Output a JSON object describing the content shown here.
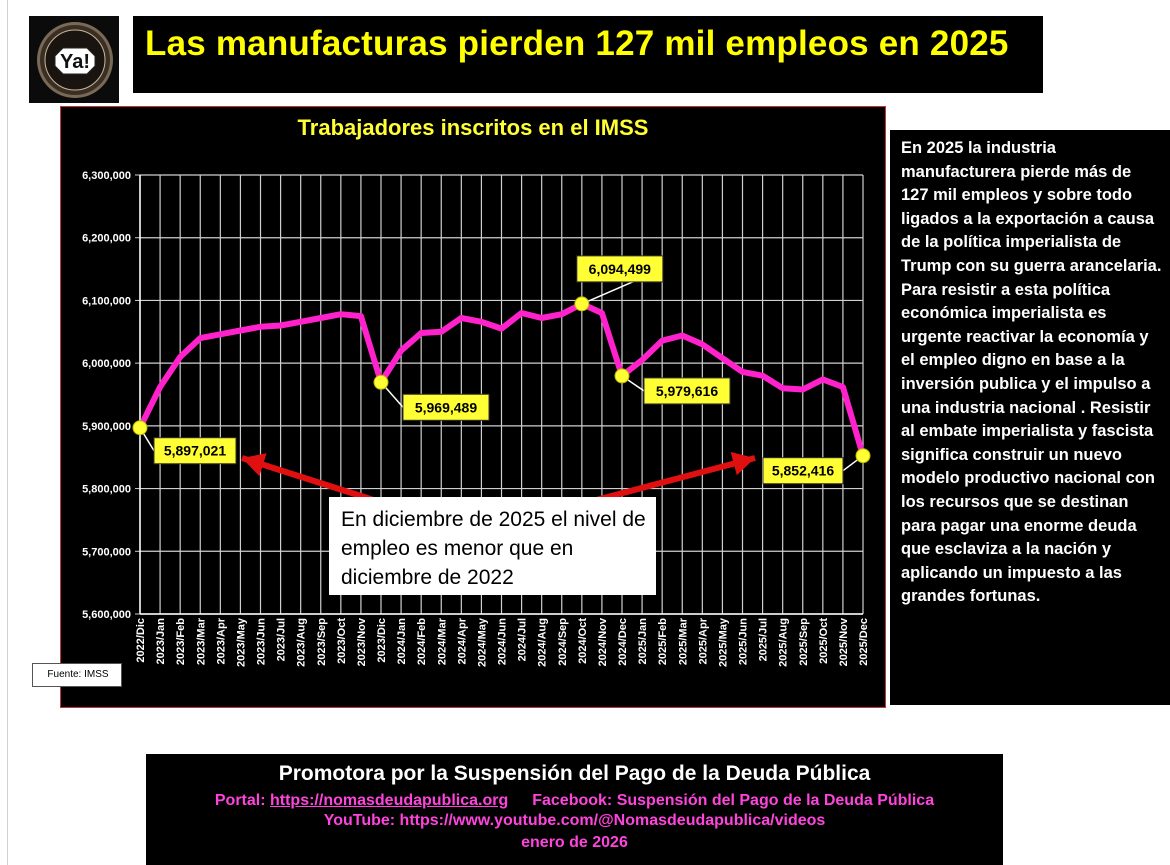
{
  "header": {
    "title": "Las manufacturas pierden 127 mil empleos en 2025",
    "logo_text": "Ya!"
  },
  "chart_data": {
    "type": "line",
    "title": "Trabajadores inscritos en el IMSS",
    "ylim": [
      5600000,
      6300000
    ],
    "ytick_labels": [
      "5,600,000",
      "5,700,000",
      "5,800,000",
      "5,900,000",
      "6,000,000",
      "6,100,000",
      "6,200,000",
      "6,300,000"
    ],
    "grid": true,
    "line_color": "#ff22cc",
    "marker_color": "#ffff33",
    "x": [
      "2022/Dic",
      "2023/Jan",
      "2023/Feb",
      "2023/Mar",
      "2023/Apr",
      "2023/May",
      "2023/Jun",
      "2023/Jul",
      "2023/Aug",
      "2023/Sep",
      "2023/Oct",
      "2023/Nov",
      "2023/Dic",
      "2024/Jan",
      "2024/Feb",
      "2024/Mar",
      "2024/Apr",
      "2024/May",
      "2024/Jun",
      "2024/Jul",
      "2024/Aug",
      "2024/Sep",
      "2024/Oct",
      "2024/Nov",
      "2024/Dec",
      "2025/Jan",
      "2025/Feb",
      "2025/Mar",
      "2025/Apr",
      "2025/May",
      "2025/Jun",
      "2025/Jul",
      "2025/Aug",
      "2025/Sep",
      "2025/Oct",
      "2025/Nov",
      "2025/Dec"
    ],
    "series": [
      {
        "values": [
          5897021,
          5962000,
          6010000,
          6040000,
          6046000,
          6052000,
          6058000,
          6060000,
          6066000,
          6072000,
          6078000,
          6075000,
          5969489,
          6020000,
          6048000,
          6050000,
          6072000,
          6066000,
          6055000,
          6080000,
          6072000,
          6078000,
          6094499,
          6080000,
          5979616,
          6005000,
          6036000,
          6044000,
          6030000,
          6008000,
          5986000,
          5980000,
          5960000,
          5958000,
          5974000,
          5962000,
          5852416
        ]
      }
    ],
    "annotations": [
      {
        "x": "2022/Dic",
        "label": "5,897,021"
      },
      {
        "x": "2023/Dic",
        "label": "5,969,489"
      },
      {
        "x": "2024/Oct",
        "label": "6,094,499"
      },
      {
        "x": "2024/Dec",
        "label": "5,979,616"
      },
      {
        "x": "2025/Dec",
        "label": "5,852,416"
      }
    ],
    "note": "En diciembre de 2025 el nivel de empleo es menor que en diciembre de 2022",
    "source": "Fuente: IMSS"
  },
  "side_text": "En 2025 la industria manufacturera pierde más de 127 mil empleos y sobre todo ligados a la exportación a causa de la política imperialista de Trump con su guerra arancelaria. Para resistir a esta política económica imperialista es urgente reactivar la economía y el empleo digno en base a la inversión publica y el impulso a una industria nacional . Resistir al embate imperialista y fascista significa construir un nuevo modelo productivo nacional con los recursos que se destinan para pagar una enorme deuda que esclaviza a la nación y aplicando un impuesto a las grandes fortunas.",
  "footer": {
    "org": "Promotora por la Suspensión del Pago de la Deuda Pública",
    "portal_label": "Portal: ",
    "portal_url": "https://nomasdeudapublica.org",
    "facebook": "Facebook: Suspensión del Pago de la Deuda Pública",
    "youtube": "YouTube: https://www.youtube.com/@Nomasdeudapublica/videos",
    "date": "enero de 2026"
  }
}
